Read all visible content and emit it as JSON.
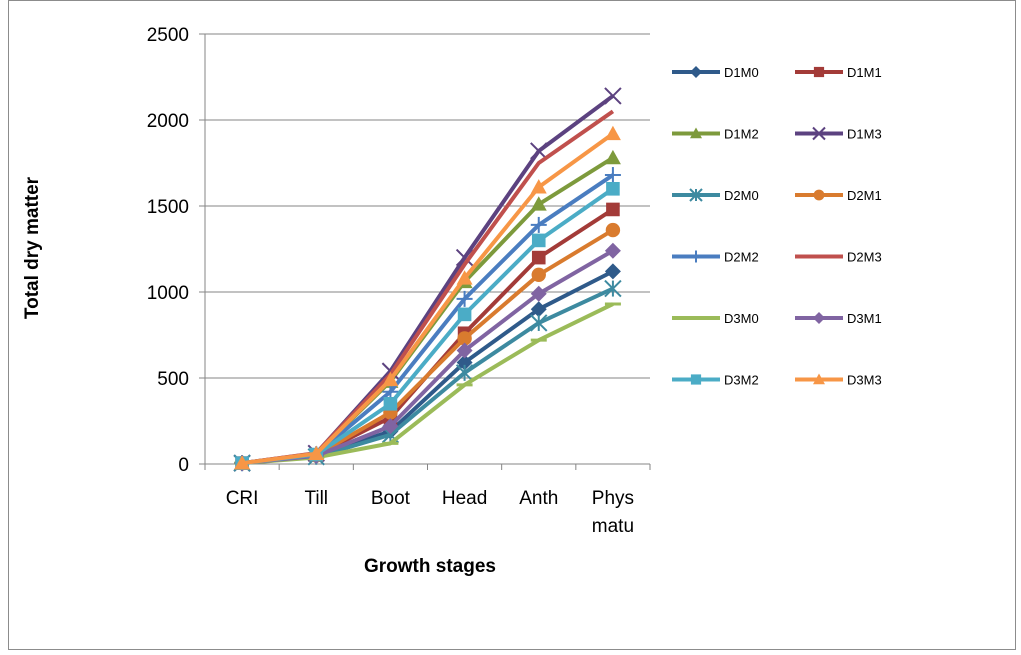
{
  "chart_data": {
    "type": "line",
    "title": "",
    "xlabel": "Growth stages",
    "ylabel": "Total dry matter",
    "categories": [
      [
        "CRI"
      ],
      [
        "Till"
      ],
      [
        "Boot"
      ],
      [
        "Head"
      ],
      [
        "Anth"
      ],
      [
        "Phys",
        "matu"
      ]
    ],
    "ylim": [
      0,
      2500
    ],
    "yticks": [
      0,
      500,
      1000,
      1500,
      2000,
      2500
    ],
    "grid": "horizontal",
    "legend_position": "right",
    "series": [
      {
        "name": "D1M0",
        "color": "#2f5a8a",
        "marker": "diamond",
        "values": [
          5,
          45,
          190,
          590,
          900,
          1120
        ]
      },
      {
        "name": "D1M1",
        "color": "#a33b38",
        "marker": "square",
        "values": [
          5,
          52,
          270,
          760,
          1200,
          1480
        ]
      },
      {
        "name": "D1M2",
        "color": "#7d9a3c",
        "marker": "triangle",
        "values": [
          5,
          60,
          480,
          1060,
          1510,
          1780
        ]
      },
      {
        "name": "D1M3",
        "color": "#5c4280",
        "marker": "x",
        "values": [
          5,
          62,
          540,
          1200,
          1820,
          2140
        ]
      },
      {
        "name": "D2M0",
        "color": "#3d8aa0",
        "marker": "star",
        "values": [
          5,
          42,
          170,
          530,
          820,
          1020
        ]
      },
      {
        "name": "D2M1",
        "color": "#d97b2e",
        "marker": "circle",
        "values": [
          5,
          50,
          300,
          730,
          1100,
          1360
        ]
      },
      {
        "name": "D2M2",
        "color": "#4a7dc0",
        "marker": "plus",
        "values": [
          5,
          57,
          420,
          960,
          1390,
          1680
        ]
      },
      {
        "name": "D2M3",
        "color": "#c0504d",
        "marker": "none",
        "values": [
          5,
          63,
          520,
          1160,
          1750,
          2050
        ]
      },
      {
        "name": "D3M0",
        "color": "#9bbb59",
        "marker": "dash",
        "values": [
          5,
          38,
          120,
          460,
          720,
          930
        ]
      },
      {
        "name": "D3M1",
        "color": "#8064a2",
        "marker": "diamond",
        "values": [
          5,
          47,
          220,
          660,
          990,
          1240
        ]
      },
      {
        "name": "D3M2",
        "color": "#4bacc6",
        "marker": "square",
        "values": [
          5,
          55,
          350,
          870,
          1300,
          1600
        ]
      },
      {
        "name": "D3M3",
        "color": "#f79646",
        "marker": "triangle",
        "values": [
          5,
          60,
          490,
          1080,
          1610,
          1920
        ]
      }
    ]
  }
}
